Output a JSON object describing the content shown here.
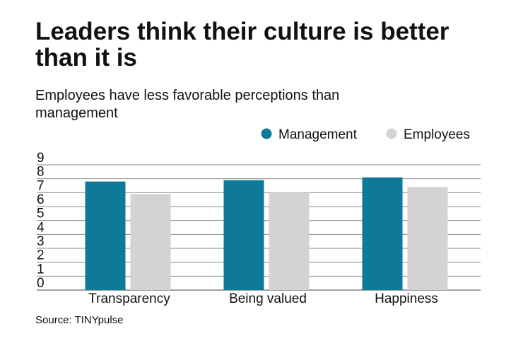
{
  "chart_data": {
    "type": "bar",
    "title": [
      "Leaders think their culture is better",
      "than it is"
    ],
    "subtitle": [
      "Employees have less favorable perceptions than",
      "management"
    ],
    "source": "Source: TINYpulse",
    "categories": [
      "Transparency",
      "Being valued",
      "Happiness"
    ],
    "series": [
      {
        "name": "Management",
        "color": "#0e7a98",
        "values": [
          7.8,
          7.9,
          8.1
        ]
      },
      {
        "name": "Employees",
        "color": "#d4d2d4",
        "values": [
          6.9,
          7.0,
          7.4
        ]
      }
    ],
    "ylim": [
      0,
      9
    ],
    "yticks": [
      0,
      1,
      2,
      3,
      4,
      5,
      6,
      7,
      8,
      9
    ],
    "grid": true
  }
}
